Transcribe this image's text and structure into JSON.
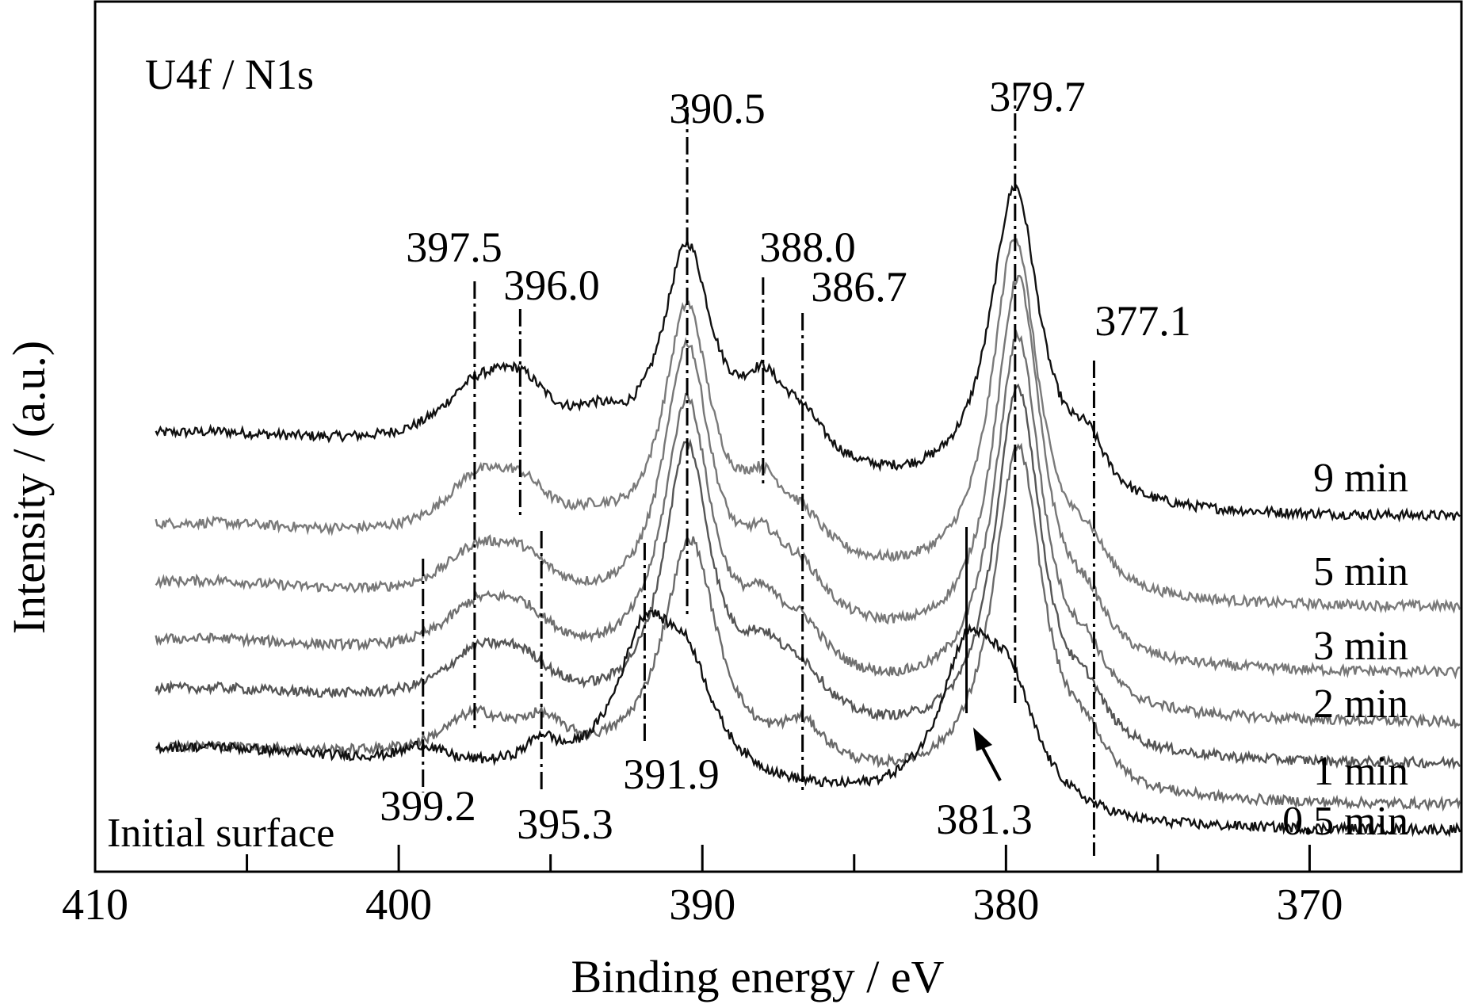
{
  "chart_data": {
    "type": "line",
    "title": "U4f / N1s",
    "xlabel": "Binding energy / eV",
    "ylabel": "Intensity / (a.u.)",
    "xlim": [
      410,
      365
    ],
    "x_reversed": true,
    "y_ticks_shown": false,
    "x_ticks": [
      410,
      400,
      390,
      380,
      370
    ],
    "x_tick_labels": [
      "410",
      "400",
      "390",
      "380",
      "370"
    ],
    "grid": false,
    "series": [
      {
        "name": "9 min",
        "color": "#111111",
        "baseline_high_be": 0.51,
        "baseline_low_be": 0.41,
        "peaks": [
          {
            "be": 397.5,
            "height": 0.06,
            "width": 1.4
          },
          {
            "be": 396.0,
            "height": 0.07,
            "width": 1.3
          },
          {
            "be": 393.5,
            "height": 0.03,
            "width": 1.0
          },
          {
            "be": 390.5,
            "height": 0.26,
            "width": 1.0
          },
          {
            "be": 388.0,
            "height": 0.08,
            "width": 0.9
          },
          {
            "be": 386.7,
            "height": 0.05,
            "width": 1.0
          },
          {
            "be": 379.7,
            "height": 0.38,
            "width": 1.0
          },
          {
            "be": 377.3,
            "height": 0.05,
            "width": 0.7
          }
        ]
      },
      {
        "name": "5 min",
        "color": "#7a7a7a",
        "baseline_high_be": 0.4,
        "baseline_low_be": 0.3,
        "peaks": [
          {
            "be": 397.5,
            "height": 0.06,
            "width": 1.3
          },
          {
            "be": 396.0,
            "height": 0.06,
            "width": 1.3
          },
          {
            "be": 393.5,
            "height": 0.02,
            "width": 1.0
          },
          {
            "be": 390.5,
            "height": 0.3,
            "width": 0.95
          },
          {
            "be": 388.0,
            "height": 0.07,
            "width": 0.9
          },
          {
            "be": 386.7,
            "height": 0.04,
            "width": 1.0
          },
          {
            "be": 379.7,
            "height": 0.43,
            "width": 0.95
          },
          {
            "be": 377.3,
            "height": 0.04,
            "width": 0.7
          }
        ]
      },
      {
        "name": "3 min",
        "color": "#777777",
        "baseline_high_be": 0.33,
        "baseline_low_be": 0.22,
        "peaks": [
          {
            "be": 397.5,
            "height": 0.05,
            "width": 1.3
          },
          {
            "be": 396.0,
            "height": 0.05,
            "width": 1.3
          },
          {
            "be": 390.5,
            "height": 0.33,
            "width": 0.95
          },
          {
            "be": 388.0,
            "height": 0.07,
            "width": 0.9
          },
          {
            "be": 386.7,
            "height": 0.05,
            "width": 1.0
          },
          {
            "be": 379.6,
            "height": 0.46,
            "width": 0.95
          },
          {
            "be": 377.3,
            "height": 0.04,
            "width": 0.7
          }
        ]
      },
      {
        "name": "2 min",
        "color": "#707070",
        "baseline_high_be": 0.26,
        "baseline_low_be": 0.16,
        "peaks": [
          {
            "be": 397.5,
            "height": 0.05,
            "width": 1.3
          },
          {
            "be": 396.0,
            "height": 0.05,
            "width": 1.3
          },
          {
            "be": 390.5,
            "height": 0.33,
            "width": 0.95
          },
          {
            "be": 388.0,
            "height": 0.06,
            "width": 0.9
          },
          {
            "be": 386.7,
            "height": 0.05,
            "width": 1.0
          },
          {
            "be": 379.6,
            "height": 0.45,
            "width": 0.95
          },
          {
            "be": 377.3,
            "height": 0.04,
            "width": 0.7
          }
        ]
      },
      {
        "name": "1 min",
        "color": "#555555",
        "baseline_high_be": 0.2,
        "baseline_low_be": 0.11,
        "peaks": [
          {
            "be": 397.5,
            "height": 0.05,
            "width": 1.3
          },
          {
            "be": 396.0,
            "height": 0.05,
            "width": 1.3
          },
          {
            "be": 390.5,
            "height": 0.33,
            "width": 0.95
          },
          {
            "be": 388.0,
            "height": 0.06,
            "width": 0.9
          },
          {
            "be": 386.7,
            "height": 0.05,
            "width": 1.0
          },
          {
            "be": 379.6,
            "height": 0.44,
            "width": 0.95
          },
          {
            "be": 377.3,
            "height": 0.04,
            "width": 0.7
          }
        ]
      },
      {
        "name": "0.5 min",
        "color": "#6a6a6a",
        "baseline_high_be": 0.13,
        "baseline_low_be": 0.06,
        "peaks": [
          {
            "be": 397.5,
            "height": 0.05,
            "width": 1.3
          },
          {
            "be": 395.3,
            "height": 0.04,
            "width": 1.0
          },
          {
            "be": 390.4,
            "height": 0.28,
            "width": 1.1
          },
          {
            "be": 386.7,
            "height": 0.05,
            "width": 1.0
          },
          {
            "be": 379.6,
            "height": 0.42,
            "width": 1.0
          },
          {
            "be": 377.3,
            "height": 0.04,
            "width": 0.7
          }
        ]
      },
      {
        "name": "Initial surface",
        "color": "#111111",
        "baseline_high_be": 0.13,
        "baseline_low_be": 0.03,
        "peaks": [
          {
            "be": 399.2,
            "height": 0.02,
            "width": 0.8
          },
          {
            "be": 395.3,
            "height": 0.03,
            "width": 0.6
          },
          {
            "be": 391.9,
            "height": 0.16,
            "width": 1.1
          },
          {
            "be": 390.5,
            "height": 0.12,
            "width": 1.1
          },
          {
            "be": 381.3,
            "height": 0.17,
            "width": 1.1
          },
          {
            "be": 379.9,
            "height": 0.13,
            "width": 1.1
          }
        ]
      }
    ],
    "series_labels": [
      {
        "text": "9 min",
        "series": 0
      },
      {
        "text": "5 min",
        "series": 1
      },
      {
        "text": "3 min",
        "series": 2
      },
      {
        "text": "2 min",
        "series": 3
      },
      {
        "text": "1 min",
        "series": 4
      },
      {
        "text": "0.5 min",
        "series": 5
      },
      {
        "text": "Initial surface",
        "series": 6
      }
    ],
    "peak_annotations": [
      {
        "label": "390.5",
        "be": 390.5
      },
      {
        "label": "379.7",
        "be": 379.7
      },
      {
        "label": "397.5",
        "be": 397.5
      },
      {
        "label": "396.0",
        "be": 396.0
      },
      {
        "label": "388.0",
        "be": 388.0
      },
      {
        "label": "386.7",
        "be": 386.7
      },
      {
        "label": "377.1",
        "be": 377.1
      },
      {
        "label": "391.9",
        "be": 391.9
      },
      {
        "label": "399.2",
        "be": 399.2
      },
      {
        "label": "395.3",
        "be": 395.3
      },
      {
        "label": "381.3",
        "be": 381.3,
        "arrow": true
      }
    ]
  }
}
